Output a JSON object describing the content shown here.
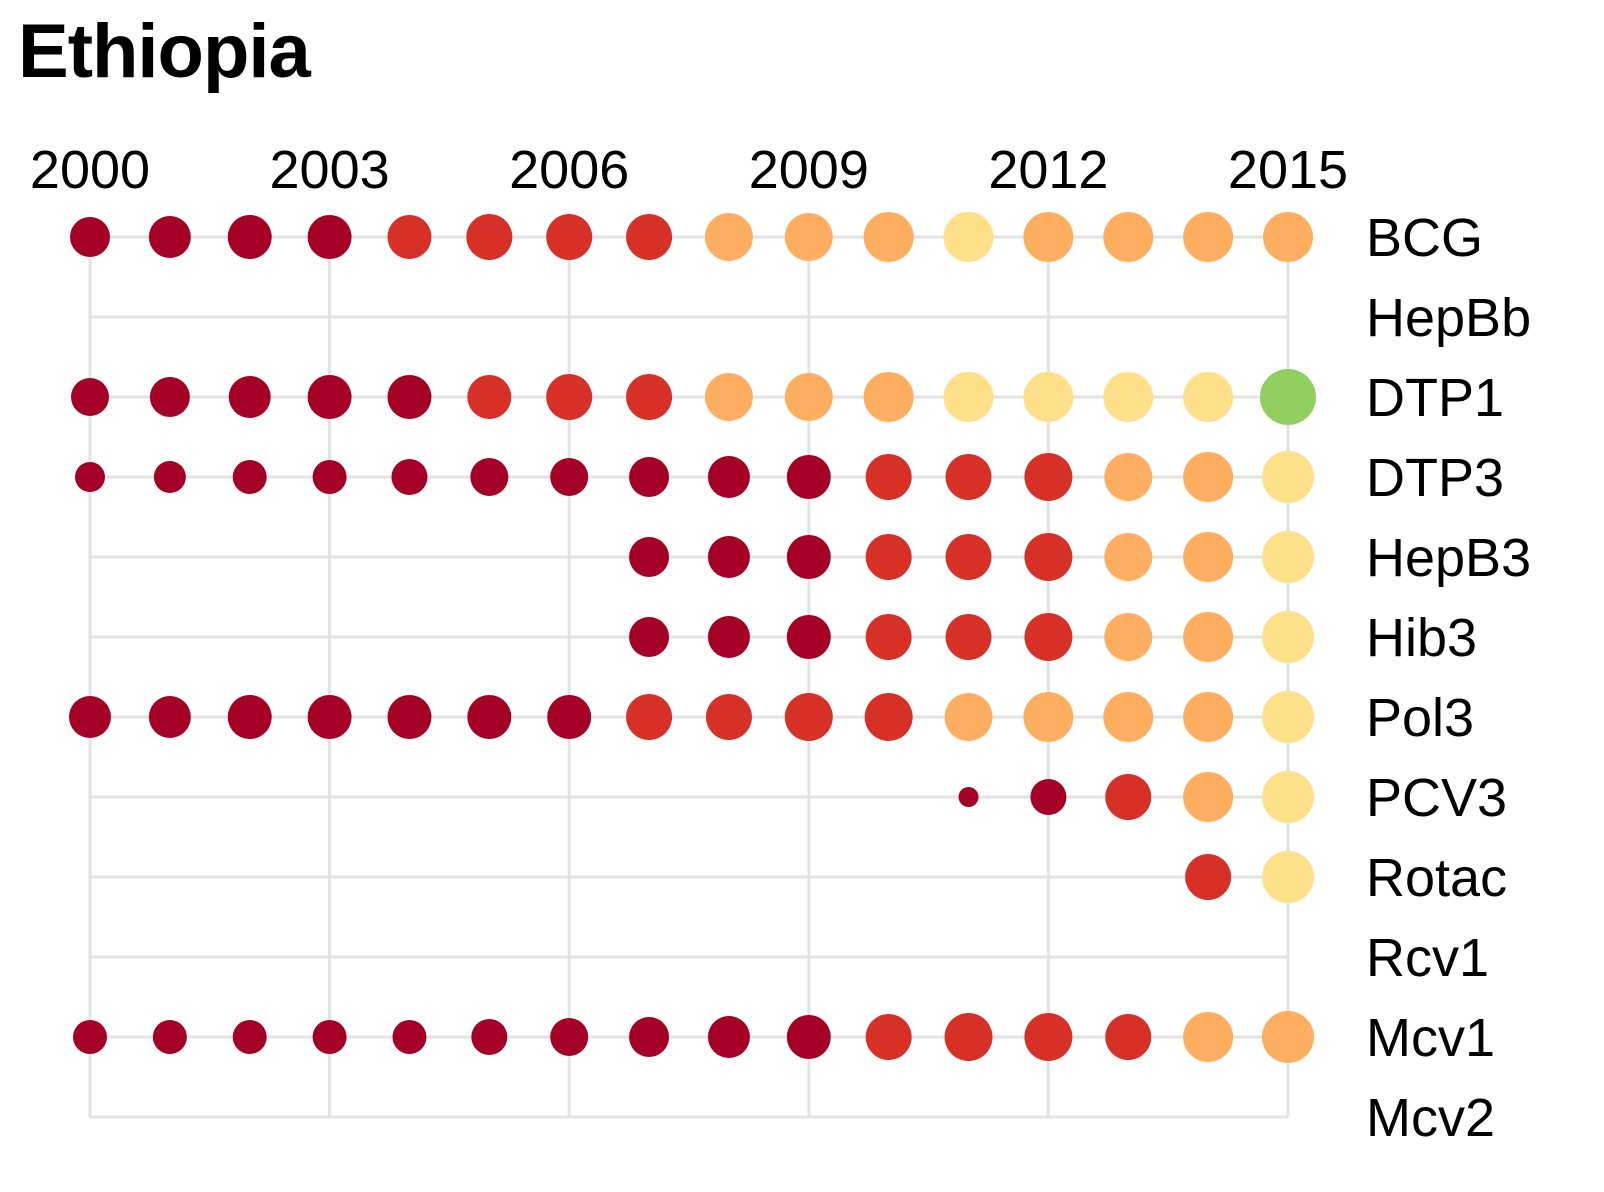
{
  "chart_data": {
    "type": "scatter",
    "title": "Ethiopia",
    "xlabel": "",
    "ylabel": "",
    "x_ticks": [
      "2000",
      "2003",
      "2006",
      "2009",
      "2012",
      "2015"
    ],
    "years": [
      2000,
      2001,
      2002,
      2003,
      2004,
      2005,
      2006,
      2007,
      2008,
      2009,
      2010,
      2011,
      2012,
      2013,
      2014,
      2015
    ],
    "xlim": [
      2000,
      2015
    ],
    "grid": true,
    "legend": "none",
    "vaccines": [
      "BCG",
      "HepBb",
      "DTP1",
      "DTP3",
      "HepB3",
      "Hib3",
      "Pol3",
      "PCV3",
      "Rotac",
      "Rcv1",
      "Mcv1",
      "Mcv2"
    ],
    "color_scale": [
      "#a50026",
      "#d73027",
      "#fdae61",
      "#fee08b",
      "#91cf60"
    ],
    "series": [
      {
        "name": "BCG",
        "sizes": [
          20,
          21,
          22,
          22,
          22,
          23,
          23,
          23,
          24,
          24,
          25,
          25,
          25,
          25,
          25,
          25
        ],
        "color_levels": [
          0,
          0,
          0,
          0,
          1,
          1,
          1,
          1,
          2,
          2,
          2,
          3,
          2,
          2,
          2,
          2
        ]
      },
      {
        "name": "HepBb",
        "sizes": [
          null,
          null,
          null,
          null,
          null,
          null,
          null,
          null,
          null,
          null,
          null,
          null,
          null,
          null,
          null,
          null
        ],
        "color_levels": [
          null,
          null,
          null,
          null,
          null,
          null,
          null,
          null,
          null,
          null,
          null,
          null,
          null,
          null,
          null,
          null
        ]
      },
      {
        "name": "DTP1",
        "sizes": [
          19,
          20,
          21,
          22,
          22,
          22,
          23,
          23,
          24,
          24,
          25,
          25,
          25,
          25,
          25,
          28
        ],
        "color_levels": [
          0,
          0,
          0,
          0,
          0,
          1,
          1,
          1,
          2,
          2,
          2,
          3,
          3,
          3,
          3,
          4
        ]
      },
      {
        "name": "DTP3",
        "sizes": [
          15,
          16,
          17,
          17,
          18,
          19,
          19,
          20,
          21,
          22,
          23,
          23,
          24,
          24,
          25,
          26
        ],
        "color_levels": [
          0,
          0,
          0,
          0,
          0,
          0,
          0,
          0,
          0,
          0,
          1,
          1,
          1,
          2,
          2,
          3
        ]
      },
      {
        "name": "HepB3",
        "sizes": [
          null,
          null,
          null,
          null,
          null,
          null,
          null,
          20,
          21,
          22,
          23,
          23,
          24,
          24,
          25,
          26
        ],
        "color_levels": [
          null,
          null,
          null,
          null,
          null,
          null,
          null,
          0,
          0,
          0,
          1,
          1,
          1,
          2,
          2,
          3
        ]
      },
      {
        "name": "Hib3",
        "sizes": [
          null,
          null,
          null,
          null,
          null,
          null,
          null,
          20,
          21,
          22,
          23,
          23,
          24,
          24,
          25,
          26
        ],
        "color_levels": [
          null,
          null,
          null,
          null,
          null,
          null,
          null,
          0,
          0,
          0,
          1,
          1,
          1,
          2,
          2,
          3
        ]
      },
      {
        "name": "Pol3",
        "sizes": [
          21,
          21,
          22,
          22,
          22,
          22,
          22,
          23,
          23,
          24,
          24,
          24,
          25,
          25,
          25,
          26
        ],
        "color_levels": [
          0,
          0,
          0,
          0,
          0,
          0,
          0,
          1,
          1,
          1,
          1,
          2,
          2,
          2,
          2,
          3
        ]
      },
      {
        "name": "PCV3",
        "sizes": [
          null,
          null,
          null,
          null,
          null,
          null,
          null,
          null,
          null,
          null,
          null,
          10,
          18,
          23,
          25,
          26
        ],
        "color_levels": [
          null,
          null,
          null,
          null,
          null,
          null,
          null,
          null,
          null,
          null,
          null,
          0,
          0,
          1,
          2,
          3
        ]
      },
      {
        "name": "Rotac",
        "sizes": [
          null,
          null,
          null,
          null,
          null,
          null,
          null,
          null,
          null,
          null,
          null,
          null,
          null,
          null,
          23,
          26
        ],
        "color_levels": [
          null,
          null,
          null,
          null,
          null,
          null,
          null,
          null,
          null,
          null,
          null,
          null,
          null,
          null,
          1,
          3
        ]
      },
      {
        "name": "Rcv1",
        "sizes": [
          null,
          null,
          null,
          null,
          null,
          null,
          null,
          null,
          null,
          null,
          null,
          null,
          null,
          null,
          null,
          null
        ],
        "color_levels": [
          null,
          null,
          null,
          null,
          null,
          null,
          null,
          null,
          null,
          null,
          null,
          null,
          null,
          null,
          null,
          null
        ]
      },
      {
        "name": "Mcv1",
        "sizes": [
          17,
          17,
          17,
          17,
          17,
          18,
          19,
          20,
          21,
          22,
          23,
          24,
          24,
          23,
          25,
          26
        ],
        "color_levels": [
          0,
          0,
          0,
          0,
          0,
          0,
          0,
          0,
          0,
          0,
          1,
          1,
          1,
          1,
          2,
          2
        ]
      },
      {
        "name": "Mcv2",
        "sizes": [
          null,
          null,
          null,
          null,
          null,
          null,
          null,
          null,
          null,
          null,
          null,
          null,
          null,
          null,
          null,
          null
        ],
        "color_levels": [
          null,
          null,
          null,
          null,
          null,
          null,
          null,
          null,
          null,
          null,
          null,
          null,
          null,
          null,
          null,
          null
        ]
      }
    ]
  }
}
